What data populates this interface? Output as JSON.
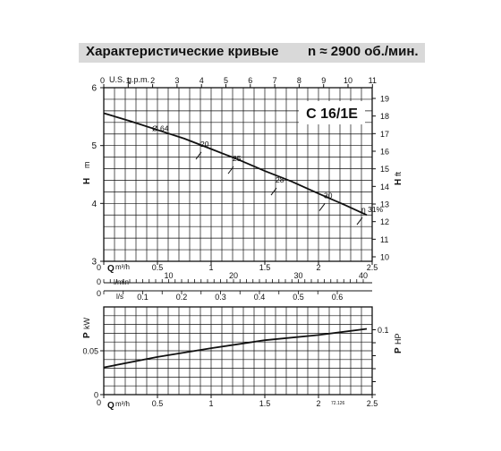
{
  "header": {
    "title": "Характеристические кривые",
    "speed": "n ≈ 2900 об./мин."
  },
  "chart_data": [
    {
      "type": "line",
      "model": "C 16/1E",
      "xlabel": "Q m³/h",
      "ylabel": "H m",
      "y2label": "H ft",
      "xlim": [
        0,
        2.5
      ],
      "ylim": [
        3,
        6
      ],
      "y2lim": [
        10,
        19
      ],
      "x_ticks": [
        "0",
        "0.5",
        "1",
        "1.5",
        "2",
        "2.5"
      ],
      "y_ticks": [
        "3",
        "4",
        "5",
        "6"
      ],
      "y2_ticks": [
        "10",
        "11",
        "12",
        "13",
        "14",
        "15",
        "16",
        "17",
        "18",
        "19"
      ],
      "top_axis": {
        "label": "U.S. g.p.m.",
        "ticks": [
          "0",
          "1",
          "2",
          "3",
          "4",
          "5",
          "6",
          "7",
          "8",
          "9",
          "10",
          "11"
        ]
      },
      "extra_axes": [
        {
          "label": "l/min",
          "ticks": [
            "0",
            "10",
            "20",
            "30",
            "40"
          ]
        },
        {
          "label": "l/s",
          "ticks": [
            "0",
            "0.1",
            "0.2",
            "0.3",
            "0.4",
            "0.5",
            "0.6"
          ]
        }
      ],
      "grid": true,
      "curve": {
        "x": [
          0,
          0.25,
          0.5,
          0.75,
          1.0,
          1.25,
          1.5,
          1.75,
          2.0,
          2.25,
          2.45
        ],
        "y": [
          5.56,
          5.42,
          5.27,
          5.12,
          4.94,
          4.76,
          4.56,
          4.38,
          4.17,
          3.97,
          3.8
        ]
      },
      "efficiency_labels": [
        {
          "text": "Ø 64",
          "x": 0.45,
          "y": 5.25
        },
        {
          "text": "20",
          "x": 0.9,
          "y": 4.98
        },
        {
          "text": "25",
          "x": 1.2,
          "y": 4.73
        },
        {
          "text": "28",
          "x": 1.6,
          "y": 4.36
        },
        {
          "text": "30",
          "x": 2.05,
          "y": 4.09
        },
        {
          "text": "η 31%",
          "x": 2.4,
          "y": 3.85
        }
      ]
    },
    {
      "type": "line",
      "xlabel": "Q m³/h",
      "ylabel": "P kW",
      "y2label": "P HP",
      "xlim": [
        0,
        2.5
      ],
      "ylim": [
        0,
        0.1
      ],
      "x_ticks": [
        "0",
        "0.5",
        "1",
        "1.5",
        "2",
        "2.5"
      ],
      "y_ticks": [
        "0",
        "0.05"
      ],
      "y2_ticks": [
        "0.1"
      ],
      "grid": true,
      "series": [
        {
          "x": [
            0,
            0.5,
            1.0,
            1.5,
            2.0,
            2.45
          ],
          "y": [
            0.031,
            0.043,
            0.053,
            0.062,
            0.068,
            0.075
          ]
        }
      ],
      "code": "72.126"
    }
  ]
}
